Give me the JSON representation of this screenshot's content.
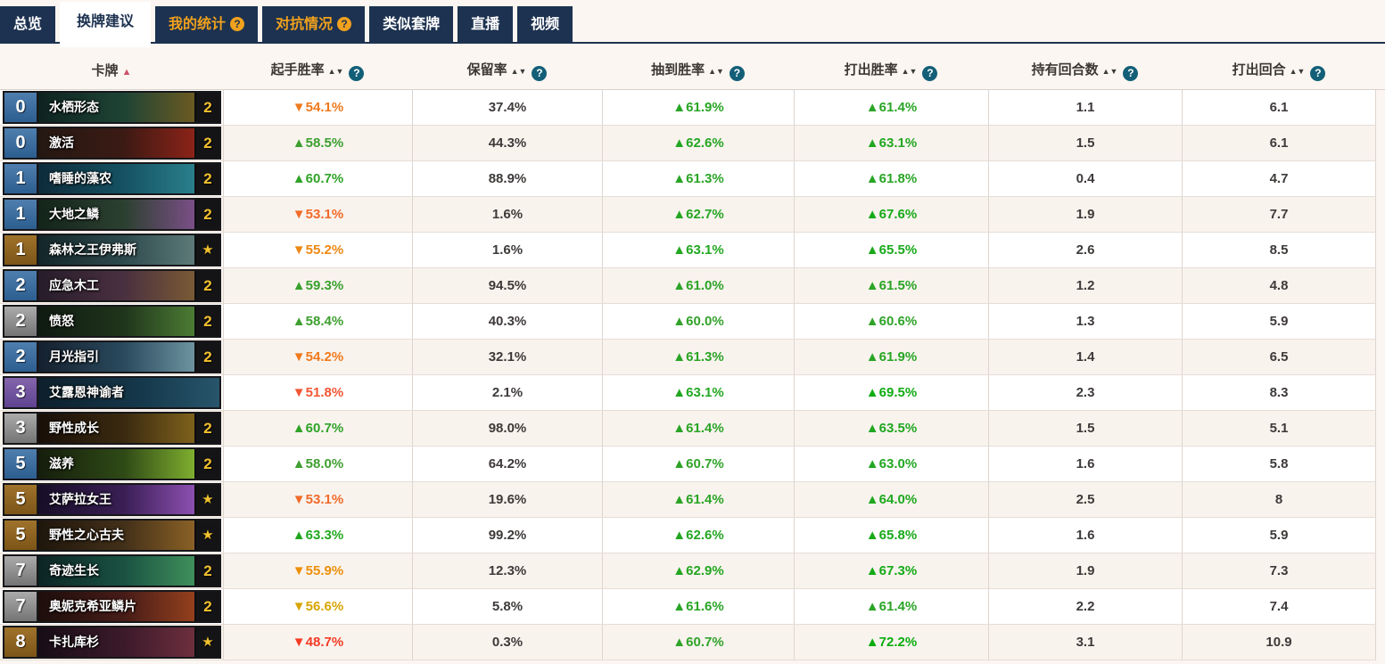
{
  "tabs": [
    {
      "label": "总览",
      "state": "normal",
      "help": false
    },
    {
      "label": "换牌建议",
      "state": "active",
      "help": false
    },
    {
      "label": "我的统计",
      "state": "gold",
      "help": true
    },
    {
      "label": "对抗情况",
      "state": "gold",
      "help": true
    },
    {
      "label": "类似套牌",
      "state": "normal",
      "help": false
    },
    {
      "label": "直播",
      "state": "normal",
      "help": false
    },
    {
      "label": "视频",
      "state": "normal",
      "help": false
    }
  ],
  "help_icon_glyph": "?",
  "sort_icons": {
    "active_asc": "▲",
    "both": "▲▼"
  },
  "colors": {
    "tab_bar": "#1d3250",
    "tab_gold_text": "#f0a11d",
    "header_help_circle": "#135f78",
    "card_sort_arrow": "#ca5469",
    "count_gold": "#f2c12e"
  },
  "table": {
    "columns": [
      {
        "label": "卡牌",
        "sort": "single",
        "help": false
      },
      {
        "label": "起手胜率",
        "sort": "both",
        "help": true
      },
      {
        "label": "保留率",
        "sort": "both",
        "help": true
      },
      {
        "label": "抽到胜率",
        "sort": "both",
        "help": true
      },
      {
        "label": "打出胜率",
        "sort": "both",
        "help": true
      },
      {
        "label": "持有回合数",
        "sort": "both",
        "help": true
      },
      {
        "label": "打出回合",
        "sort": "both",
        "help": true
      }
    ],
    "rows": [
      {
        "cost": "0",
        "name": "水栖形态",
        "rarity": "rare",
        "count": "2",
        "art": [
          "#0e2320",
          "#1e4435",
          "#6b5a22"
        ],
        "mull": "▼54.1%",
        "mull_color": "#ef7a1d",
        "keep": "37.4%",
        "drawn": "▲61.9%",
        "drawn_color": "#28a524",
        "played": "▲61.4%",
        "played_color": "#2aa426",
        "held": "1.1",
        "turn": "6.1"
      },
      {
        "cost": "0",
        "name": "激活",
        "rarity": "rare",
        "count": "2",
        "art": [
          "#241812",
          "#3c1a14",
          "#8c2318"
        ],
        "mull": "▲58.5%",
        "mull_color": "#3c9f2f",
        "keep": "44.3%",
        "drawn": "▲62.6%",
        "drawn_color": "#24a622",
        "played": "▲63.1%",
        "played_color": "#22a721",
        "held": "1.5",
        "turn": "6.1"
      },
      {
        "cost": "1",
        "name": "嗜睡的藻农",
        "rarity": "rare",
        "count": "2",
        "art": [
          "#0e2b3a",
          "#155263",
          "#2a7f8c"
        ],
        "mull": "▲60.7%",
        "mull_color": "#2fa328",
        "keep": "88.9%",
        "drawn": "▲61.3%",
        "drawn_color": "#2aa426",
        "played": "▲61.8%",
        "played_color": "#28a525",
        "held": "0.4",
        "turn": "4.7"
      },
      {
        "cost": "1",
        "name": "大地之鳞",
        "rarity": "rare",
        "count": "2",
        "art": [
          "#13241a",
          "#2c4030",
          "#7a4f86"
        ],
        "mull": "▼53.1%",
        "mull_color": "#f16a29",
        "keep": "1.6%",
        "drawn": "▲62.7%",
        "drawn_color": "#24a622",
        "played": "▲67.6%",
        "played_color": "#15aa17",
        "held": "1.9",
        "turn": "7.7"
      },
      {
        "cost": "1",
        "name": "森林之王伊弗斯",
        "rarity": "legendary",
        "count": "★",
        "art": [
          "#132629",
          "#2e4a4d",
          "#5d7a79"
        ],
        "mull": "▼55.2%",
        "mull_color": "#ee8813",
        "keep": "1.6%",
        "drawn": "▲63.1%",
        "drawn_color": "#22a721",
        "played": "▲65.5%",
        "played_color": "#1aa91b",
        "held": "2.6",
        "turn": "8.5"
      },
      {
        "cost": "2",
        "name": "应急木工",
        "rarity": "rare",
        "count": "2",
        "art": [
          "#271c2a",
          "#4a3040",
          "#7a5a35"
        ],
        "mull": "▲59.3%",
        "mull_color": "#38a02c",
        "keep": "94.5%",
        "drawn": "▲61.0%",
        "drawn_color": "#2ca427",
        "played": "▲61.5%",
        "played_color": "#29a425",
        "held": "1.2",
        "turn": "4.8"
      },
      {
        "cost": "2",
        "name": "愤怒",
        "rarity": "common",
        "count": "2",
        "art": [
          "#0f1a11",
          "#20351c",
          "#4c7c33"
        ],
        "mull": "▲58.4%",
        "mull_color": "#3d9f2f",
        "keep": "40.3%",
        "drawn": "▲60.0%",
        "drawn_color": "#32a229",
        "played": "▲60.6%",
        "played_color": "#2fa328",
        "held": "1.3",
        "turn": "5.9"
      },
      {
        "cost": "2",
        "name": "月光指引",
        "rarity": "rare",
        "count": "2",
        "art": [
          "#15202e",
          "#2a4a5e",
          "#6d93a0"
        ],
        "mull": "▼54.2%",
        "mull_color": "#ef7a1d",
        "keep": "32.1%",
        "drawn": "▲61.3%",
        "drawn_color": "#2aa426",
        "played": "▲61.9%",
        "played_color": "#28a524",
        "held": "1.4",
        "turn": "6.5"
      },
      {
        "cost": "3",
        "name": "艾露恩神谕者",
        "rarity": "epic",
        "count": "",
        "art": [
          "#0d1f2c",
          "#15374a",
          "#27556b"
        ],
        "mull": "▼51.8%",
        "mull_color": "#f25633",
        "keep": "2.1%",
        "drawn": "▲63.1%",
        "drawn_color": "#22a721",
        "played": "▲69.5%",
        "played_color": "#10ab13",
        "held": "2.3",
        "turn": "8.3"
      },
      {
        "cost": "3",
        "name": "野性成长",
        "rarity": "common",
        "count": "2",
        "art": [
          "#190f08",
          "#3a2a10",
          "#7f611c"
        ],
        "mull": "▲60.7%",
        "mull_color": "#2fa328",
        "keep": "98.0%",
        "drawn": "▲61.4%",
        "drawn_color": "#2aa426",
        "played": "▲63.5%",
        "played_color": "#20a720",
        "held": "1.5",
        "turn": "5.1"
      },
      {
        "cost": "5",
        "name": "滋养",
        "rarity": "rare",
        "count": "2",
        "art": [
          "#151d0c",
          "#2f4a16",
          "#7fae2f"
        ],
        "mull": "▲58.0%",
        "mull_color": "#3f9f30",
        "keep": "64.2%",
        "drawn": "▲60.7%",
        "drawn_color": "#2fa328",
        "played": "▲63.0%",
        "played_color": "#22a721",
        "held": "1.6",
        "turn": "5.8"
      },
      {
        "cost": "5",
        "name": "艾萨拉女王",
        "rarity": "legendary",
        "count": "★",
        "art": [
          "#170e28",
          "#3a1f55",
          "#8c4fb0"
        ],
        "mull": "▼53.1%",
        "mull_color": "#f16a29",
        "keep": "19.6%",
        "drawn": "▲61.4%",
        "drawn_color": "#2aa426",
        "played": "▲64.0%",
        "played_color": "#1ea81e",
        "held": "2.5",
        "turn": "8"
      },
      {
        "cost": "5",
        "name": "野性之心古夫",
        "rarity": "legendary",
        "count": "★",
        "art": [
          "#1f160c",
          "#433019",
          "#8a6126"
        ],
        "mull": "▲63.3%",
        "mull_color": "#21a71f",
        "keep": "99.2%",
        "drawn": "▲62.6%",
        "drawn_color": "#24a622",
        "played": "▲65.8%",
        "played_color": "#19a91a",
        "held": "1.6",
        "turn": "5.9"
      },
      {
        "cost": "7",
        "name": "奇迹生长",
        "rarity": "common",
        "count": "2",
        "art": [
          "#0c2424",
          "#1a5242",
          "#3f8f5b"
        ],
        "mull": "▼55.9%",
        "mull_color": "#ec9009",
        "keep": "12.3%",
        "drawn": "▲62.9%",
        "drawn_color": "#23a721",
        "played": "▲67.3%",
        "played_color": "#15aa17",
        "held": "1.9",
        "turn": "7.3"
      },
      {
        "cost": "7",
        "name": "奥妮克希亚鳞片",
        "rarity": "common",
        "count": "2",
        "art": [
          "#1d0e0c",
          "#471c18",
          "#93401d"
        ],
        "mull": "▼56.6%",
        "mull_color": "#d8a506",
        "keep": "5.8%",
        "drawn": "▲61.6%",
        "drawn_color": "#29a425",
        "played": "▲61.4%",
        "played_color": "#2aa426",
        "held": "2.2",
        "turn": "7.4"
      },
      {
        "cost": "8",
        "name": "卡扎库杉",
        "rarity": "legendary",
        "count": "★",
        "art": [
          "#170d16",
          "#3c1a2a",
          "#6d2f3e"
        ],
        "mull": "▼48.7%",
        "mull_color": "#f43a23",
        "keep": "0.3%",
        "drawn": "▲60.7%",
        "drawn_color": "#2fa328",
        "played": "▲72.2%",
        "played_color": "#0aad0e",
        "held": "3.1",
        "turn": "10.9"
      }
    ]
  }
}
